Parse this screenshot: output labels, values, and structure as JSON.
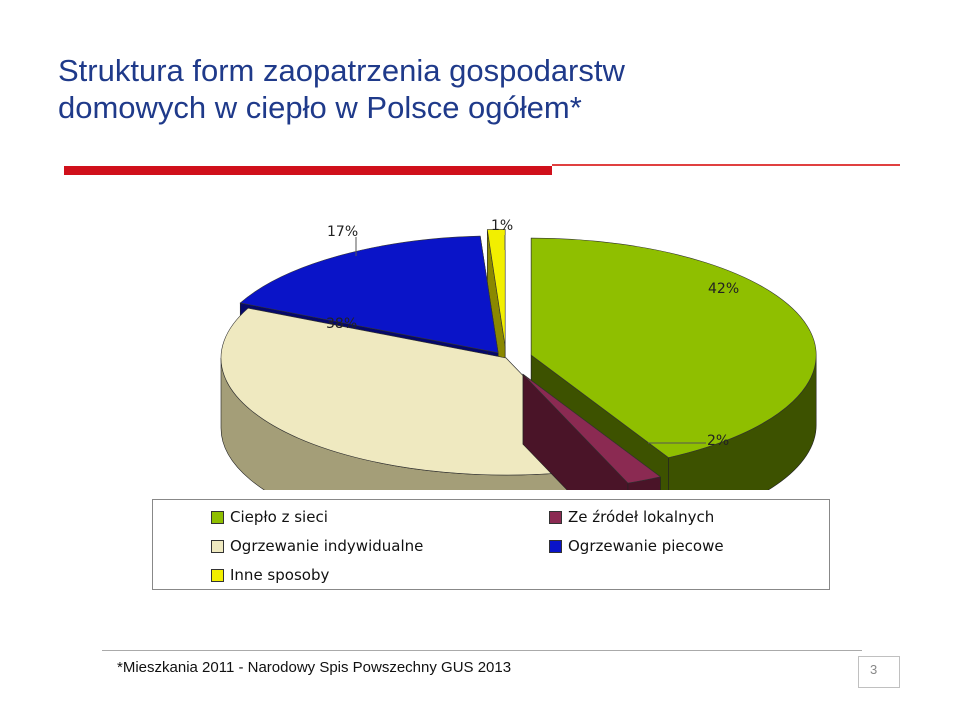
{
  "slide": {
    "title_line1": "Struktura form zaopatrzenia gospodarstw",
    "title_line2": "domowych w ciepło w Polsce ogółem*",
    "footnote": "*Mieszkania 2011 - Narodowy Spis Powszechny  GUS 2013",
    "page_number": "3",
    "accent_color": "#d0101b",
    "title_color": "#1f3a8a"
  },
  "chart_data": {
    "type": "pie",
    "title": "",
    "categories": [
      "Ciepło z sieci",
      "Ze źródeł lokalnych",
      "Ogrzewanie indywidualne",
      "Ogrzewanie piecowe",
      "Inne sposoby"
    ],
    "values": [
      42,
      2,
      38,
      17,
      1
    ],
    "labels": [
      "42%",
      "2%",
      "38%",
      "17%",
      "1%"
    ],
    "colors": [
      "#8fbf00",
      "#8b2a52",
      "#efe9c0",
      "#0a14c8",
      "#f2ef00"
    ],
    "side_colors": [
      "#3d5200",
      "#4a1428",
      "#a49e78",
      "#05086a",
      "#8a8800"
    ],
    "legend": [
      {
        "label": "Ciepło z sieci",
        "color": "#8fbf00"
      },
      {
        "label": "Ze źródeł lokalnych",
        "color": "#8b2a52"
      },
      {
        "label": "Ogrzewanie indywidualne",
        "color": "#efe9c0"
      },
      {
        "label": "Ogrzewanie piecowe",
        "color": "#0a14c8"
      },
      {
        "label": "Inne sposoby",
        "color": "#f2ef00"
      }
    ],
    "legend_position": "bottom",
    "style": "3d-exploded"
  }
}
